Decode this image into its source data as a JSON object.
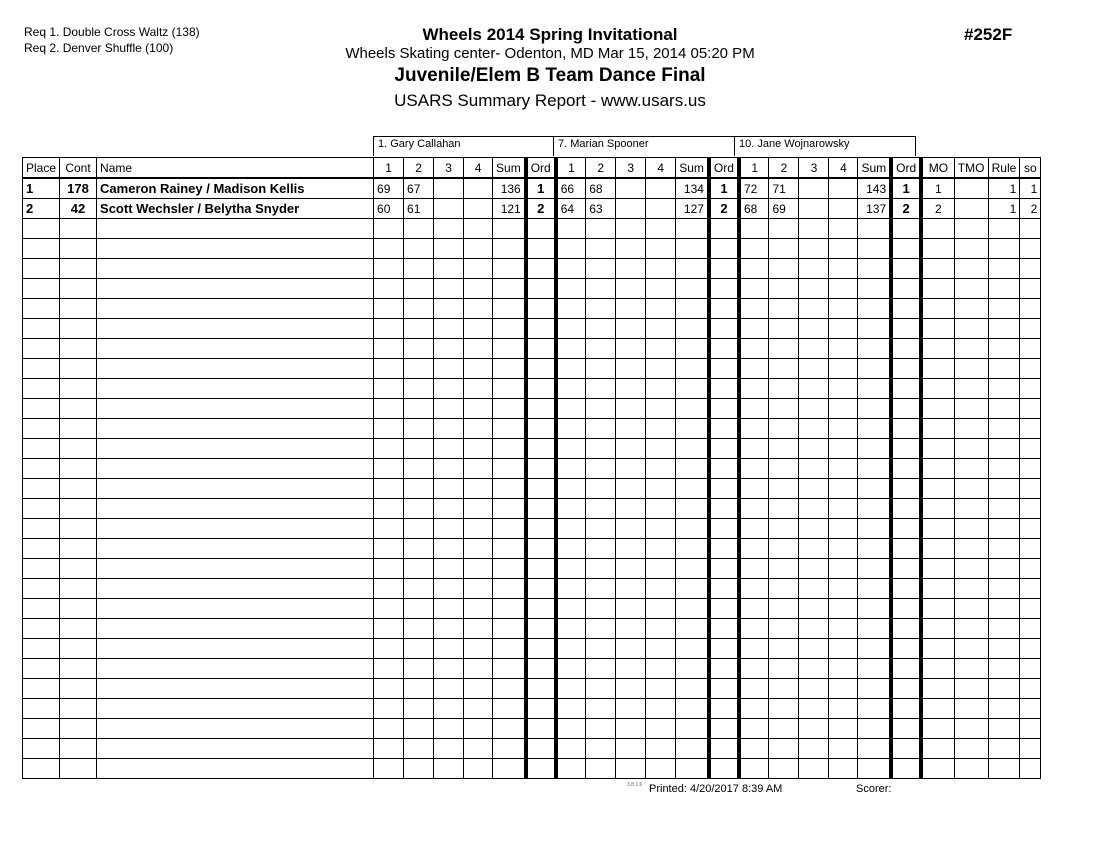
{
  "requirements": [
    "Req  1.  Double Cross Waltz (138)",
    "Req  2.  Denver Shuffle (100)"
  ],
  "header": {
    "title": "Wheels 2014 Spring Invitational",
    "venue": "Wheels Skating center- Odenton, MD  Mar 15, 2014  05:20 PM",
    "event": "Juvenile/Elem B Team Dance Final",
    "report": "USARS Summary Report - www.usars.us",
    "event_number": "#252F"
  },
  "judges": [
    "1.  Gary Callahan",
    "7.  Marian Spooner",
    "10.  Jane Wojnarowsky"
  ],
  "columns": {
    "place": "Place",
    "cont": "Cont",
    "name": "Name",
    "scores": [
      "1",
      "2",
      "3",
      "4"
    ],
    "sum": "Sum",
    "ord": "Ord",
    "mo": "MO",
    "tmo": "TMO",
    "rule": "Rule",
    "so": "so"
  },
  "rows": [
    {
      "place": "1",
      "cont": "178",
      "name": "Cameron Rainey / Madison Kellis",
      "judges": [
        {
          "scores": [
            "69",
            "67",
            "",
            ""
          ],
          "sum": "136",
          "ord": "1"
        },
        {
          "scores": [
            "66",
            "68",
            "",
            ""
          ],
          "sum": "134",
          "ord": "1"
        },
        {
          "scores": [
            "72",
            "71",
            "",
            ""
          ],
          "sum": "143",
          "ord": "1"
        }
      ],
      "mo": "1",
      "tmo": "",
      "rule": "1",
      "so": "1"
    },
    {
      "place": "2",
      "cont": "42",
      "name": "Scott Wechsler / Belytha Snyder",
      "judges": [
        {
          "scores": [
            "60",
            "61",
            "",
            ""
          ],
          "sum": "121",
          "ord": "2"
        },
        {
          "scores": [
            "64",
            "63",
            "",
            ""
          ],
          "sum": "127",
          "ord": "2"
        },
        {
          "scores": [
            "68",
            "69",
            "",
            ""
          ],
          "sum": "137",
          "ord": "2"
        }
      ],
      "mo": "2",
      "tmo": "",
      "rule": "1",
      "so": "2"
    }
  ],
  "footer": {
    "version": "3.8.1.6",
    "printed": "Printed:  4/20/2017  8:39 AM",
    "scorer": "Scorer:"
  }
}
